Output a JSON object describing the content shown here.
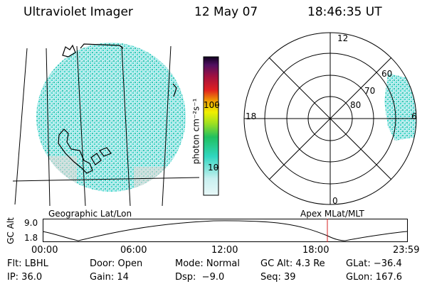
{
  "header": {
    "instrument": "Ultraviolet Imager",
    "date": "12 May 07",
    "time": "18:46:35 UT"
  },
  "colorbar": {
    "unit_label": "photon cm⁻²s⁻¹",
    "ticks": [
      "100",
      "10"
    ]
  },
  "polar": {
    "labels": [
      "12",
      "18",
      "6",
      "0",
      "60",
      "70",
      "80"
    ]
  },
  "panel_labels": {
    "geographic": "Geographic Lat/Lon",
    "apex": "Apex MLat/MLT"
  },
  "altitude_plot": {
    "ylabel": "GC Alt",
    "yticks": [
      "9.0",
      "1.8"
    ],
    "xticks": [
      "00:00",
      "06:00",
      "12:00",
      "18:00",
      "23:59"
    ],
    "current_time_marker": "18:46"
  },
  "info": {
    "row1": [
      "Flt: LBHL",
      "Door: Open",
      "Mode: Normal",
      "GC Alt: 4.3 Re",
      "GLat: −36.4"
    ],
    "row2": [
      "IP: 36.0",
      "Gain: 14",
      "Dsp:  −9.0",
      "Seq: 39",
      "GLon: 167.6"
    ]
  },
  "colors": {
    "aurora_cyan": "#3fd6c8",
    "aurora_light": "#bfeef0",
    "marker_red": "#d42020"
  }
}
